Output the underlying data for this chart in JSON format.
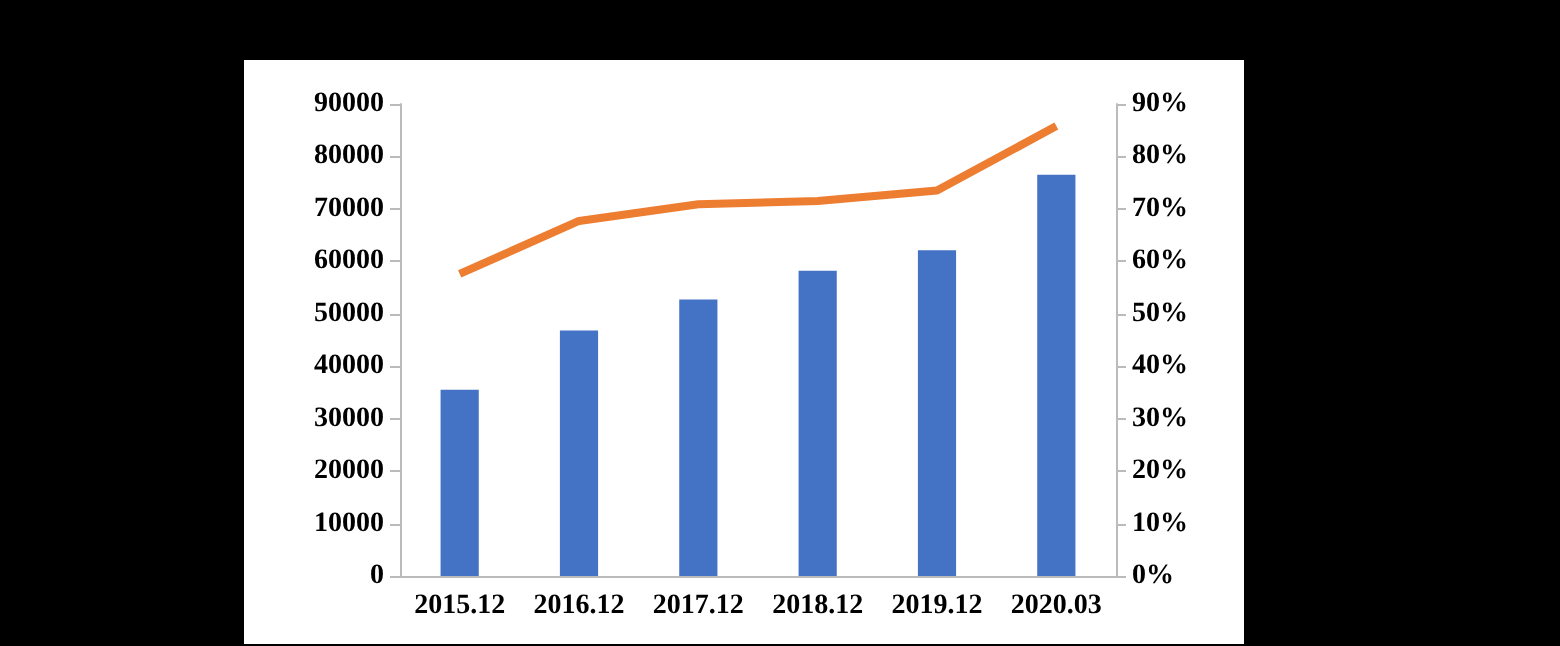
{
  "chart_data": {
    "type": "bar",
    "categories": [
      "2015.12",
      "2016.12",
      "2017.12",
      "2018.12",
      "2019.12",
      "2020.03"
    ],
    "series": [
      {
        "color": "#4472c4",
        "values": [
          35500,
          46800,
          52700,
          58200,
          62100,
          76500
        ]
      },
      {
        "type": "line",
        "axis": "y2",
        "color": "#ed7d31",
        "values": [
          57.6,
          67.7,
          70.9,
          71.5,
          73.5,
          85.8
        ]
      }
    ],
    "ylim": [
      0,
      90000
    ],
    "yticks": [
      0,
      10000,
      20000,
      30000,
      40000,
      50000,
      60000,
      70000,
      80000,
      90000
    ],
    "y2lim": [
      0,
      90
    ],
    "y2ticks": [
      {
        "value": 0,
        "label": "0%"
      },
      {
        "value": 10,
        "label": "10%"
      },
      {
        "value": 20,
        "label": "20%"
      },
      {
        "value": 30,
        "label": "30%"
      },
      {
        "value": 40,
        "label": "40%"
      },
      {
        "value": 50,
        "label": "50%"
      },
      {
        "value": 60,
        "label": "60%"
      },
      {
        "value": 70,
        "label": "70%"
      },
      {
        "value": 80,
        "label": "80%"
      },
      {
        "value": 90,
        "label": "90%"
      }
    ],
    "grid": false,
    "marker": "none"
  }
}
